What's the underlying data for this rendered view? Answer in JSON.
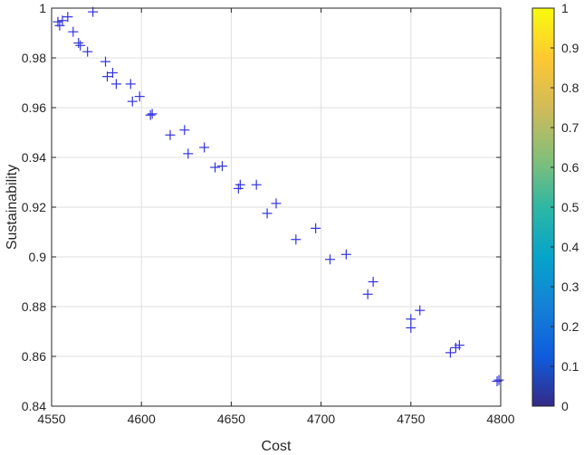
{
  "chart_data": {
    "type": "scatter",
    "title": "",
    "xlabel": "Cost",
    "ylabel": "Sustainability",
    "xlim": [
      4550,
      4800
    ],
    "ylim": [
      0.84,
      1
    ],
    "xticks": [
      "4550",
      "4600",
      "4650",
      "4700",
      "4750",
      "4800"
    ],
    "yticks": [
      "0.84",
      "0.86",
      "0.88",
      "0.9",
      "0.92",
      "0.94",
      "0.96",
      "0.98",
      "1"
    ],
    "grid": true,
    "marker": "+",
    "marker_color": "#3333dd",
    "colorbar": {
      "position": "right",
      "range": [
        0,
        1
      ],
      "ticks": [
        "0",
        "0.1",
        "0.2",
        "0.3",
        "0.4",
        "0.5",
        "0.6",
        "0.7",
        "0.8",
        "0.9",
        "1"
      ],
      "colormap": "parula",
      "colors": [
        "#352a87",
        "#0f5cdd",
        "#1481d6",
        "#06a4ca",
        "#2eb7a4",
        "#87bf77",
        "#d1bb59",
        "#fec832",
        "#f9fb0e"
      ]
    },
    "points": [
      {
        "x": 4553.5,
        "y": 0.9945
      },
      {
        "x": 4554.5,
        "y": 0.993
      },
      {
        "x": 4556.0,
        "y": 0.995
      },
      {
        "x": 4559.0,
        "y": 0.9965
      },
      {
        "x": 4562.0,
        "y": 0.9905
      },
      {
        "x": 4565.0,
        "y": 0.986
      },
      {
        "x": 4566.0,
        "y": 0.985
      },
      {
        "x": 4570.0,
        "y": 0.9825
      },
      {
        "x": 4573.0,
        "y": 0.9985
      },
      {
        "x": 4580.0,
        "y": 0.9785
      },
      {
        "x": 4581.0,
        "y": 0.9725
      },
      {
        "x": 4584.0,
        "y": 0.974
      },
      {
        "x": 4586.0,
        "y": 0.9695
      },
      {
        "x": 4594.0,
        "y": 0.9695
      },
      {
        "x": 4595.0,
        "y": 0.9625
      },
      {
        "x": 4599.0,
        "y": 0.9645
      },
      {
        "x": 4605.0,
        "y": 0.957
      },
      {
        "x": 4606.0,
        "y": 0.9575
      },
      {
        "x": 4616.0,
        "y": 0.949
      },
      {
        "x": 4624.0,
        "y": 0.951
      },
      {
        "x": 4626.0,
        "y": 0.9415
      },
      {
        "x": 4635.0,
        "y": 0.944
      },
      {
        "x": 4641.0,
        "y": 0.936
      },
      {
        "x": 4645.0,
        "y": 0.9365
      },
      {
        "x": 4654.0,
        "y": 0.9275
      },
      {
        "x": 4655.0,
        "y": 0.929
      },
      {
        "x": 4664.0,
        "y": 0.929
      },
      {
        "x": 4670.0,
        "y": 0.9175
      },
      {
        "x": 4675.0,
        "y": 0.9215
      },
      {
        "x": 4686.0,
        "y": 0.907
      },
      {
        "x": 4697.0,
        "y": 0.9115
      },
      {
        "x": 4705.0,
        "y": 0.899
      },
      {
        "x": 4714.0,
        "y": 0.901
      },
      {
        "x": 4726.0,
        "y": 0.885
      },
      {
        "x": 4729.0,
        "y": 0.89
      },
      {
        "x": 4750.0,
        "y": 0.875
      },
      {
        "x": 4750.0,
        "y": 0.8715
      },
      {
        "x": 4755.0,
        "y": 0.8785
      },
      {
        "x": 4772.0,
        "y": 0.8615
      },
      {
        "x": 4775.0,
        "y": 0.8635
      },
      {
        "x": 4777.0,
        "y": 0.8645
      },
      {
        "x": 4798.0,
        "y": 0.85
      },
      {
        "x": 4799.0,
        "y": 0.8505
      }
    ]
  }
}
